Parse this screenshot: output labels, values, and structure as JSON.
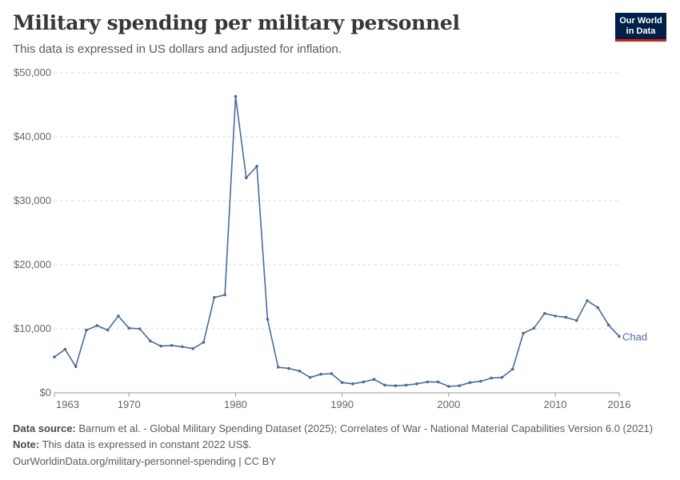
{
  "header": {
    "title": "Military spending per military personnel",
    "subtitle": "This data is expressed in US dollars and adjusted for inflation."
  },
  "logo": {
    "line1": "Our World",
    "line2": "in Data"
  },
  "colors": {
    "series": "#4c6a9c",
    "grid": "#dddddd",
    "logo_bg": "#002147",
    "logo_accent": "#ce261e"
  },
  "chart_data": {
    "type": "line",
    "title": "Military spending per military personnel",
    "subtitle": "This data is expressed in US dollars and adjusted for inflation.",
    "xlim": [
      1963,
      2016
    ],
    "ylim": [
      0,
      50000
    ],
    "x_ticks": [
      "1963",
      "1970",
      "1980",
      "1990",
      "2000",
      "2010",
      "2016"
    ],
    "y_ticks": [
      "$0",
      "$10,000",
      "$20,000",
      "$30,000",
      "$40,000",
      "$50,000"
    ],
    "grid": "horizontal dashed",
    "series": [
      {
        "name": "Chad",
        "x": [
          1963,
          1964,
          1965,
          1966,
          1967,
          1968,
          1969,
          1970,
          1971,
          1972,
          1973,
          1974,
          1975,
          1976,
          1977,
          1978,
          1979,
          1980,
          1981,
          1982,
          1983,
          1984,
          1985,
          1986,
          1987,
          1988,
          1989,
          1990,
          1991,
          1992,
          1993,
          1994,
          1995,
          1996,
          1997,
          1998,
          1999,
          2000,
          2001,
          2002,
          2003,
          2004,
          2005,
          2006,
          2007,
          2008,
          2009,
          2010,
          2011,
          2012,
          2013,
          2014,
          2015,
          2016
        ],
        "y": [
          5600,
          6800,
          4100,
          9800,
          10500,
          9800,
          12000,
          10100,
          10000,
          8100,
          7300,
          7400,
          7200,
          6900,
          7900,
          14900,
          15300,
          46300,
          33600,
          35400,
          11500,
          4000,
          3800,
          3400,
          2400,
          2900,
          3000,
          1600,
          1400,
          1700,
          2100,
          1200,
          1100,
          1200,
          1400,
          1700,
          1700,
          1000,
          1100,
          1600,
          1800,
          2300,
          2400,
          3700,
          9300,
          10100,
          12400,
          12000,
          11800,
          11300,
          14400,
          13300,
          10600,
          8800
        ]
      }
    ]
  },
  "footer": {
    "source_label": "Data source:",
    "source_text": "Barnum et al. - Global Military Spending Dataset (2025); Correlates of War - National Material Capabilities Version 6.0 (2021)",
    "note_label": "Note:",
    "note_text": "This data is expressed in constant 2022 US$.",
    "url_text": "OurWorldinData.org/military-personnel-spending | CC BY"
  }
}
